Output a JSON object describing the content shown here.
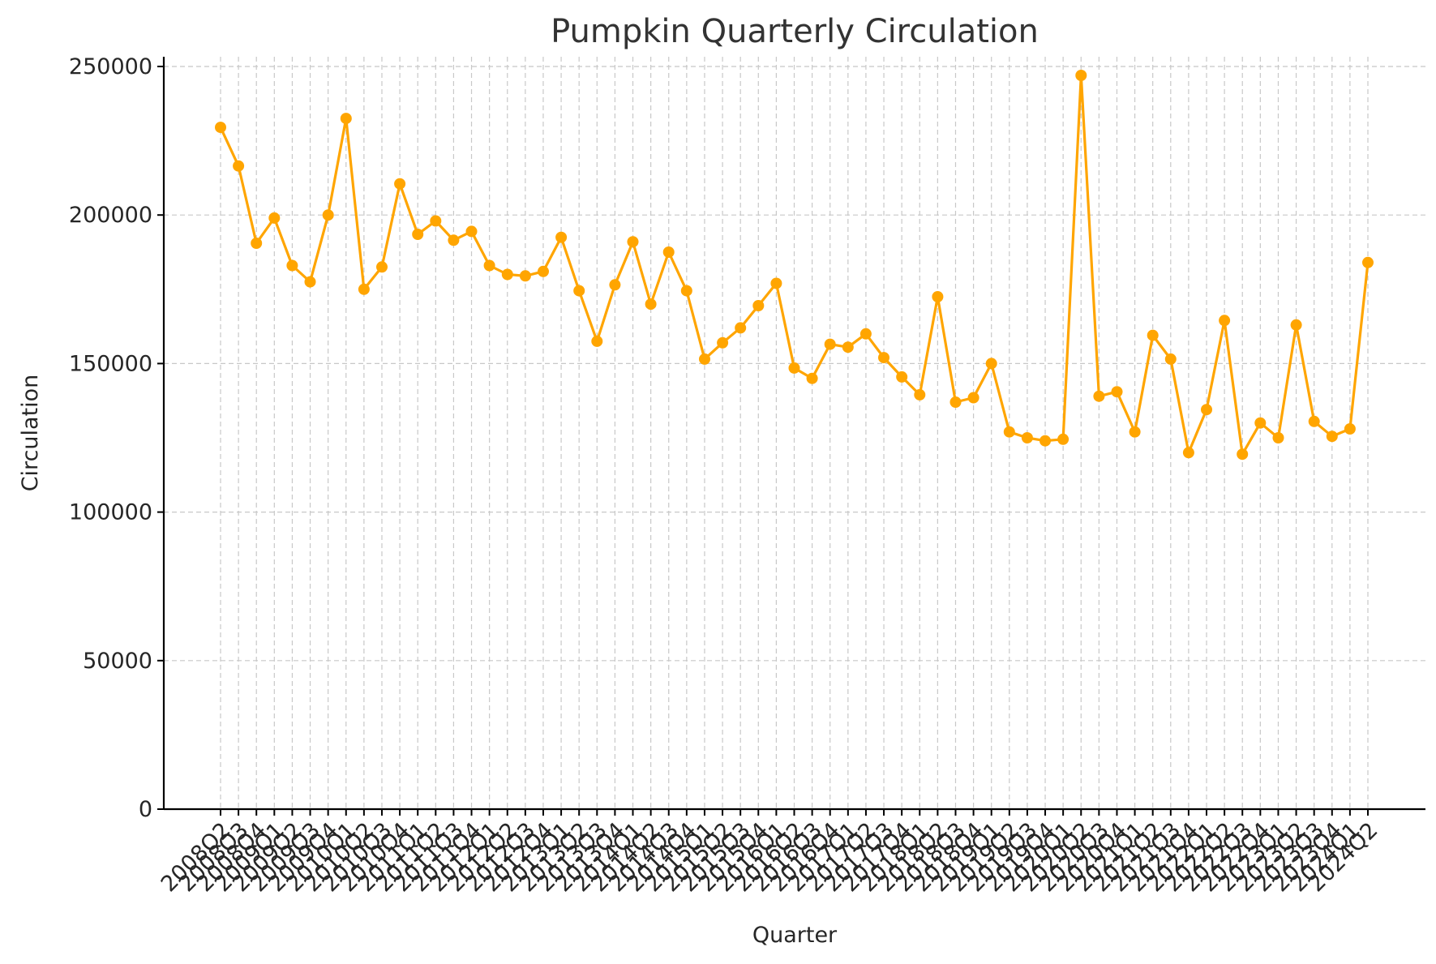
{
  "chart_data": {
    "type": "line",
    "title": "Pumpkin Quarterly Circulation",
    "xlabel": "Quarter",
    "ylabel": "Circulation",
    "ylim": [
      0,
      250000
    ],
    "yticks": [
      0,
      50000,
      100000,
      150000,
      200000,
      250000
    ],
    "grid": true,
    "line_color": "#FFA500",
    "categories": [
      "2008Q2",
      "2008Q3",
      "2008Q4",
      "2009Q1",
      "2009Q2",
      "2009Q3",
      "2009Q4",
      "2010Q1",
      "2010Q2",
      "2010Q3",
      "2010Q4",
      "2011Q1",
      "2011Q2",
      "2011Q3",
      "2011Q4",
      "2012Q1",
      "2012Q2",
      "2012Q3",
      "2012Q4",
      "2013Q1",
      "2013Q2",
      "2013Q3",
      "2013Q4",
      "2014Q1",
      "2014Q2",
      "2014Q3",
      "2014Q4",
      "2015Q1",
      "2015Q2",
      "2015Q3",
      "2015Q4",
      "2016Q1",
      "2016Q2",
      "2016Q3",
      "2016Q4",
      "2017Q1",
      "2017Q2",
      "2017Q3",
      "2017Q4",
      "2018Q1",
      "2018Q2",
      "2018Q3",
      "2018Q4",
      "2019Q1",
      "2019Q2",
      "2019Q3",
      "2019Q4",
      "2020Q1",
      "2020Q2",
      "2020Q3",
      "2020Q4",
      "2021Q1",
      "2021Q2",
      "2021Q3",
      "2021Q4",
      "2022Q1",
      "2022Q2",
      "2022Q3",
      "2022Q4",
      "2023Q1",
      "2023Q2",
      "2023Q3",
      "2023Q4",
      "2024Q1",
      "2024Q2"
    ],
    "series": [
      {
        "values": [
          229500,
          216500,
          190500,
          199000,
          183000,
          177500,
          200000,
          232500,
          175000,
          182500,
          210500,
          193500,
          198000,
          191500,
          194500,
          183000,
          180000,
          179500,
          181000,
          192500,
          174500,
          157500,
          176500,
          191000,
          170000,
          187500,
          174500,
          151500,
          157000,
          162000,
          169500,
          177000,
          148500,
          145000,
          156500,
          155500,
          160000,
          152000,
          145500,
          139500,
          172500,
          137000,
          138500,
          150000,
          127000,
          125000,
          124000,
          124500,
          247000,
          139000,
          140500,
          127000,
          159500,
          151500,
          120000,
          134500,
          164500,
          119500,
          130000,
          125000,
          163000,
          130500,
          125500,
          128000,
          184000
        ]
      }
    ]
  }
}
